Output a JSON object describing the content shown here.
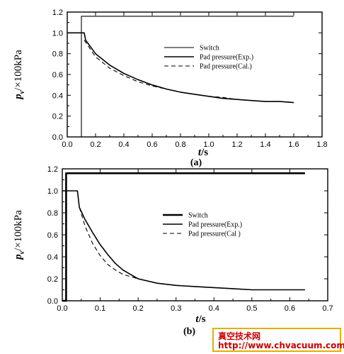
{
  "chart_data": [
    {
      "type": "line",
      "caption": "(a)",
      "xlabel": "t/s",
      "ylabel": "p_v/×100kPa",
      "xlim": [
        0.0,
        1.8
      ],
      "ylim": [
        0.0,
        1.2
      ],
      "x_ticks": [
        "0.0",
        "0.2",
        "0.4",
        "0.6",
        "0.8",
        "1.0",
        "1.2",
        "1.4",
        "1.6",
        "1.8"
      ],
      "y_ticks": [
        "0.0",
        "0.2",
        "0.4",
        "0.6",
        "0.8",
        "1.0",
        "1.2"
      ],
      "legend_position": "top-right",
      "series": [
        {
          "name": "Switch",
          "style": "solid-thin",
          "x": [
            0.0,
            0.1,
            0.1,
            0.12,
            1.6
          ],
          "y": [
            0.0,
            0.0,
            1.16,
            1.16,
            1.16
          ]
        },
        {
          "name": "Pad pressure(Exp.)",
          "style": "solid",
          "x": [
            0.0,
            0.12,
            0.13,
            0.2,
            0.3,
            0.4,
            0.5,
            0.6,
            0.7,
            0.8,
            0.9,
            1.0,
            1.1,
            1.2,
            1.3,
            1.4,
            1.5,
            1.6
          ],
          "y": [
            1.0,
            1.0,
            0.93,
            0.8,
            0.69,
            0.61,
            0.55,
            0.5,
            0.46,
            0.43,
            0.41,
            0.39,
            0.37,
            0.36,
            0.35,
            0.34,
            0.34,
            0.33
          ]
        },
        {
          "name": "Pad pressure(Cal.)",
          "style": "dashed",
          "x": [
            0.12,
            0.2,
            0.3,
            0.4,
            0.5,
            0.6,
            0.7,
            0.8,
            0.9,
            1.0,
            1.1,
            1.2,
            1.3,
            1.4,
            1.5,
            1.6
          ],
          "y": [
            0.93,
            0.77,
            0.66,
            0.59,
            0.53,
            0.49,
            0.46,
            0.43,
            0.41,
            0.39,
            0.38,
            0.36,
            0.35,
            0.34,
            0.34,
            0.33
          ]
        }
      ]
    },
    {
      "type": "line",
      "caption": "(b)",
      "xlabel": "t/s",
      "ylabel": "p_v/×100kPa",
      "xlim": [
        0.0,
        0.7
      ],
      "ylim": [
        0.0,
        1.2
      ],
      "x_ticks": [
        "0.0",
        "0.1",
        "0.2",
        "0.3",
        "0.4",
        "0.5",
        "0.6",
        "0.7"
      ],
      "y_ticks": [
        "0.0",
        "0.2",
        "0.4",
        "0.6",
        "0.8",
        "1.0",
        "1.2"
      ],
      "legend_position": "center-right",
      "series": [
        {
          "name": "Switch",
          "style": "solid-thick",
          "x": [
            0.0,
            0.01,
            0.01,
            0.64
          ],
          "y": [
            0.0,
            0.0,
            1.16,
            1.16
          ]
        },
        {
          "name": "Pad pressure(Exp.)",
          "style": "solid",
          "x": [
            0.0,
            0.04,
            0.045,
            0.06,
            0.08,
            0.1,
            0.12,
            0.14,
            0.16,
            0.18,
            0.2,
            0.25,
            0.3,
            0.35,
            0.4,
            0.45,
            0.5,
            0.55,
            0.6,
            0.64
          ],
          "y": [
            1.0,
            1.0,
            0.85,
            0.74,
            0.62,
            0.51,
            0.42,
            0.34,
            0.28,
            0.24,
            0.2,
            0.16,
            0.14,
            0.13,
            0.12,
            0.11,
            0.1,
            0.1,
            0.1,
            0.1
          ]
        },
        {
          "name": "Pad pressure(Cal )",
          "style": "dashed",
          "x": [
            0.045,
            0.06,
            0.08,
            0.1,
            0.12,
            0.14,
            0.16,
            0.18,
            0.2,
            0.25,
            0.3,
            0.35,
            0.4,
            0.45,
            0.5,
            0.55,
            0.6,
            0.64
          ],
          "y": [
            0.85,
            0.68,
            0.52,
            0.41,
            0.33,
            0.28,
            0.24,
            0.22,
            0.2,
            0.16,
            0.14,
            0.13,
            0.12,
            0.11,
            0.1,
            0.1,
            0.1,
            0.1
          ]
        }
      ]
    }
  ],
  "watermark": {
    "title": "真空技术网",
    "url": "http://www.chvacuum.com"
  }
}
